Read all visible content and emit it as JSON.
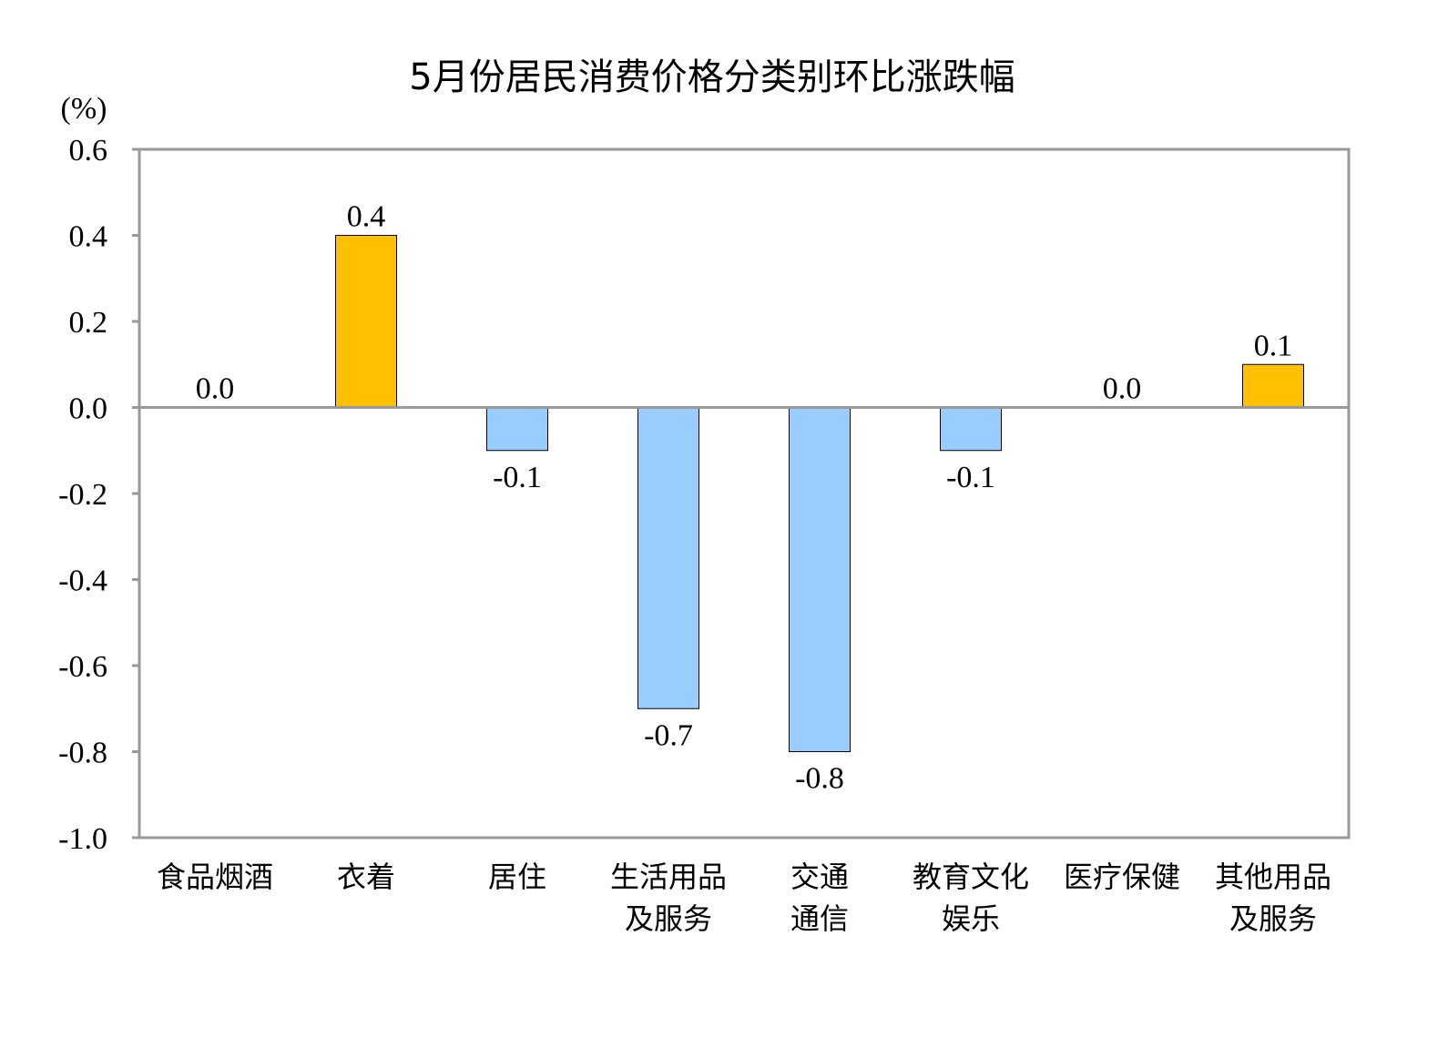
{
  "chart_data": {
    "type": "bar",
    "title": "5月份居民消费价格分类别环比涨跌幅",
    "ylabel": "(%)",
    "xlabel": "",
    "ylim": [
      -1.0,
      0.6
    ],
    "yticks": [
      "0.6",
      "0.4",
      "0.2",
      "0.0",
      "-0.2",
      "-0.4",
      "-0.6",
      "-0.8",
      "-1.0"
    ],
    "ytick_values": [
      0.6,
      0.4,
      0.2,
      0.0,
      -0.2,
      -0.4,
      -0.6,
      -0.8,
      -1.0
    ],
    "categories": [
      [
        "食品烟酒"
      ],
      [
        "衣着"
      ],
      [
        "居住"
      ],
      [
        "生活用品",
        "及服务"
      ],
      [
        "交通",
        "通信"
      ],
      [
        "教育文化",
        "娱乐"
      ],
      [
        "医疗保健"
      ],
      [
        "其他用品",
        "及服务"
      ]
    ],
    "values": [
      0.0,
      0.4,
      -0.1,
      -0.7,
      -0.8,
      -0.1,
      0.0,
      0.1
    ],
    "data_labels": [
      "0.0",
      "0.4",
      "-0.1",
      "-0.7",
      "-0.8",
      "-0.1",
      "0.0",
      "0.1"
    ],
    "grid": false,
    "legend": "none",
    "colors": {
      "positive": "#FFC000",
      "negative": "#99CCFF",
      "bar_border": "#000000",
      "frame": "#999999"
    }
  }
}
